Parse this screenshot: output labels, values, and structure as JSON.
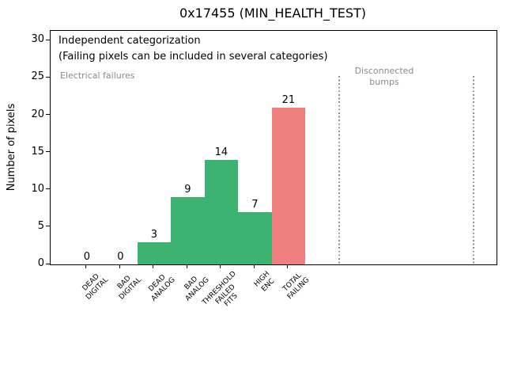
{
  "chart_data": {
    "type": "bar",
    "title": "0x17455 (MIN_HEALTH_TEST)",
    "xlabel": "",
    "ylabel": "Number of pixels",
    "ylim": [
      0,
      31.3
    ],
    "xlim": [
      -1.08,
      12.19
    ],
    "yticks": [
      0,
      5,
      10,
      15,
      20,
      25,
      30
    ],
    "grid": false,
    "legend": null,
    "categories": [
      "DEAD\nDIGITAL",
      "BAD\nDIGITAL",
      "DEAD\nANALOG",
      "BAD\nANALOG",
      "THRESHOLD\nFAILED\nFITS",
      "HIGH\nENC",
      "TOTAL\nFAILING"
    ],
    "values": [
      0,
      0,
      3,
      9,
      14,
      7,
      21
    ],
    "bar_colors": [
      "#3cb371",
      "#3cb371",
      "#3cb371",
      "#3cb371",
      "#3cb371",
      "#3cb371",
      "#f08080"
    ],
    "colors": {
      "electrical_bar_green": "#3cb371",
      "total_failing_red": "#f08080",
      "gray_annotation": "#8a8a8a",
      "axis_black": "#000000"
    },
    "annotations": {
      "independent": "Independent categorization",
      "note": "(Failing pixels can be included in several categories)",
      "electrical": "Electrical failures",
      "disconnected": "Disconnected\nbumps"
    },
    "vlines": {
      "style": "dotted",
      "color": "#8c8c8c",
      "x_positions": [
        7.5,
        11.5
      ],
      "y_top_value": 25.25
    }
  }
}
